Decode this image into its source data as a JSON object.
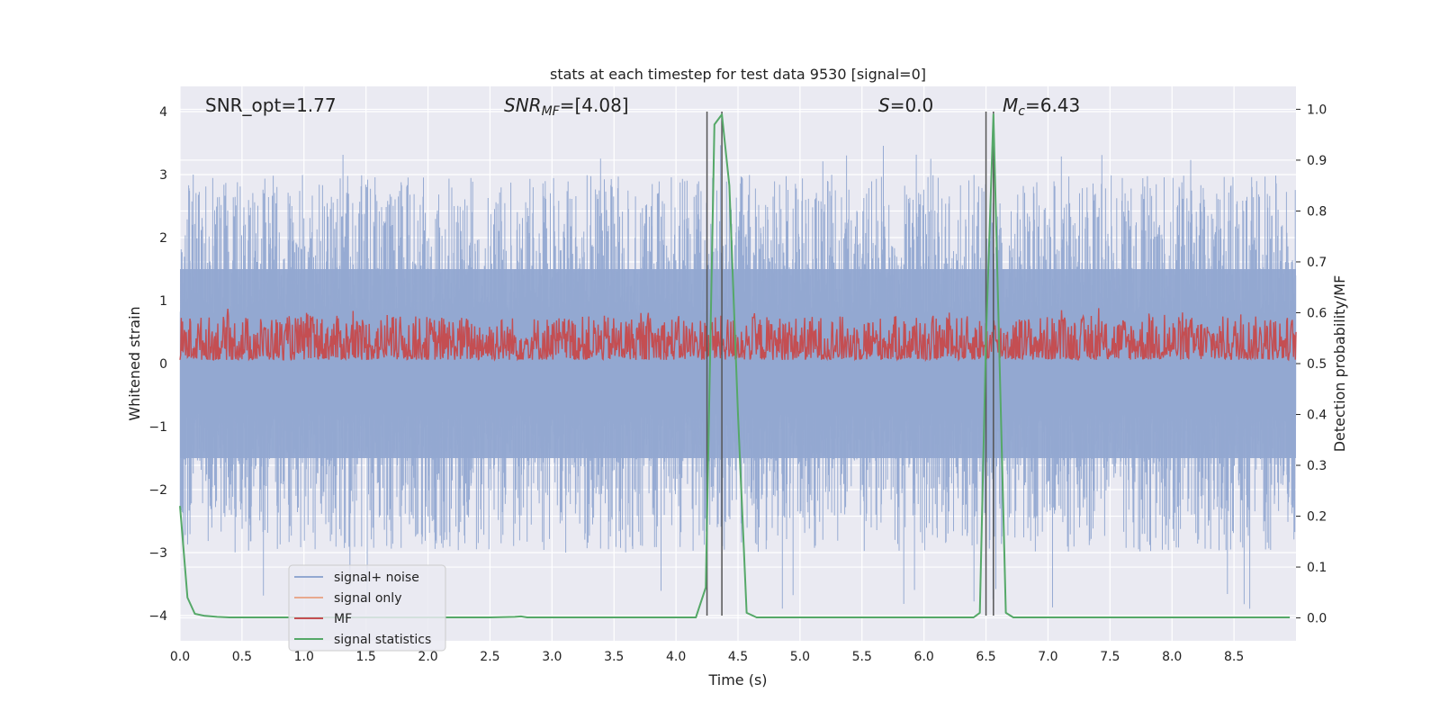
{
  "chart_data": {
    "type": "line",
    "title": "stats at each timestep for test data 9530 [signal=0]",
    "xlabel": "Time (s)",
    "ylabel": "Whitened strain",
    "ylabel_right": "Detection probability/MF",
    "xlim": [
      0,
      9.0
    ],
    "ylim": [
      -4.4,
      4.4
    ],
    "ylim_right": [
      -0.045,
      1.045
    ],
    "x_ticks": [
      "0.0",
      "0.5",
      "1.0",
      "1.5",
      "2.0",
      "2.5",
      "3.0",
      "3.5",
      "4.0",
      "4.5",
      "5.0",
      "5.5",
      "6.0",
      "6.5",
      "7.0",
      "7.5",
      "8.0",
      "8.5"
    ],
    "y_ticks": [
      "−4",
      "−3",
      "−2",
      "−1",
      "0",
      "1",
      "2",
      "3",
      "4"
    ],
    "y_ticks_right": [
      "0.0",
      "0.1",
      "0.2",
      "0.3",
      "0.4",
      "0.5",
      "0.6",
      "0.7",
      "0.8",
      "0.9",
      "1.0"
    ],
    "grid": true,
    "legend_position": "lower-left",
    "annotations": [
      {
        "text": "SNR_opt=1.77",
        "x": 0.2,
        "y": 4.05,
        "italic": false
      },
      {
        "text": "SNRMF=[4.08]",
        "x": 2.6,
        "y": 4.05,
        "italic": true
      },
      {
        "text": "S=0.0",
        "x": 5.6,
        "y": 4.05,
        "italic": true
      },
      {
        "text": "Mc=6.43",
        "x": 6.6,
        "y": 4.05,
        "italic": true
      }
    ],
    "vlines": [
      4.25,
      4.37,
      6.5,
      6.56
    ],
    "vline_range": [
      -4,
      4
    ],
    "series": [
      {
        "name": "signal+ noise",
        "color": "#92a8d1",
        "axis": "left",
        "description": "dense noise spikes",
        "envelope_upper_approx": 2.0,
        "envelope_lower_approx": -2.0,
        "max": 3.5,
        "min": -3.9
      },
      {
        "name": "signal only",
        "color": "#e8a98e",
        "axis": "left",
        "values": []
      },
      {
        "name": "MF",
        "color": "#c44e52",
        "axis": "left",
        "description": "values roughly between 0.05 and 0.9"
      },
      {
        "name": "signal statistics",
        "color": "#55a868",
        "axis": "right",
        "x": [
          0.0,
          0.06,
          0.12,
          0.2,
          0.3,
          0.4,
          0.5,
          1.0,
          2.0,
          2.5,
          2.7,
          2.75,
          2.8,
          3.0,
          3.5,
          4.0,
          4.16,
          4.24,
          4.31,
          4.37,
          4.43,
          4.5,
          4.57,
          4.65,
          5.0,
          6.0,
          6.4,
          6.45,
          6.5,
          6.56,
          6.6,
          6.66,
          6.72,
          6.8,
          7.0,
          8.0,
          8.5,
          8.95
        ],
        "values": [
          0.22,
          0.04,
          0.008,
          0.004,
          0.002,
          0.001,
          0.001,
          0.001,
          0.001,
          0.001,
          0.002,
          0.003,
          0.001,
          0.001,
          0.001,
          0.001,
          0.001,
          0.06,
          0.97,
          0.99,
          0.85,
          0.4,
          0.01,
          0.001,
          0.001,
          0.001,
          0.001,
          0.01,
          0.55,
          0.99,
          0.6,
          0.01,
          0.001,
          0.001,
          0.001,
          0.001,
          0.001,
          0.001
        ]
      }
    ]
  }
}
